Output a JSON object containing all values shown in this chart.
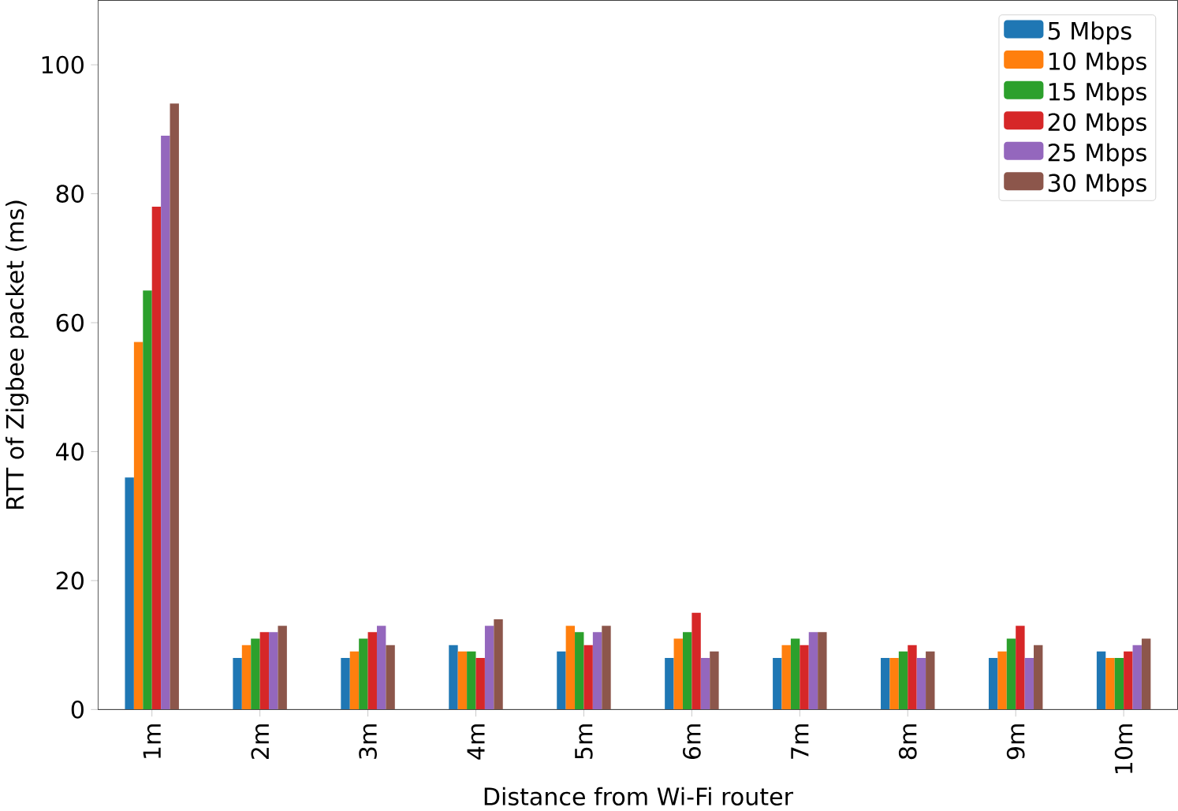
{
  "chart_data": {
    "type": "bar",
    "xlabel": "Distance from Wi-Fi router",
    "ylabel": "RTT of Zigbee packet (ms)",
    "categories": [
      "1m",
      "2m",
      "3m",
      "4m",
      "5m",
      "6m",
      "7m",
      "8m",
      "9m",
      "10m"
    ],
    "series": [
      {
        "name": "5 Mbps",
        "color": "#1f77b4",
        "values": [
          36,
          8,
          8,
          10,
          9,
          8,
          8,
          8,
          8,
          9
        ]
      },
      {
        "name": "10 Mbps",
        "color": "#ff7f0e",
        "values": [
          57,
          10,
          9,
          9,
          13,
          11,
          10,
          8,
          9,
          8
        ]
      },
      {
        "name": "15 Mbps",
        "color": "#2ca02c",
        "values": [
          65,
          11,
          11,
          9,
          12,
          12,
          11,
          9,
          11,
          8
        ]
      },
      {
        "name": "20 Mbps",
        "color": "#d62728",
        "values": [
          78,
          12,
          12,
          8,
          10,
          15,
          10,
          10,
          13,
          9
        ]
      },
      {
        "name": "25 Mbps",
        "color": "#9467bd",
        "values": [
          89,
          12,
          13,
          13,
          12,
          8,
          12,
          8,
          8,
          10
        ]
      },
      {
        "name": "30 Mbps",
        "color": "#8c564b",
        "values": [
          94,
          13,
          10,
          14,
          13,
          9,
          12,
          9,
          10,
          11
        ]
      }
    ],
    "ylim": [
      0,
      110
    ],
    "yticks": [
      0,
      20,
      40,
      60,
      80,
      100
    ],
    "legend": "top right",
    "grid": false
  }
}
